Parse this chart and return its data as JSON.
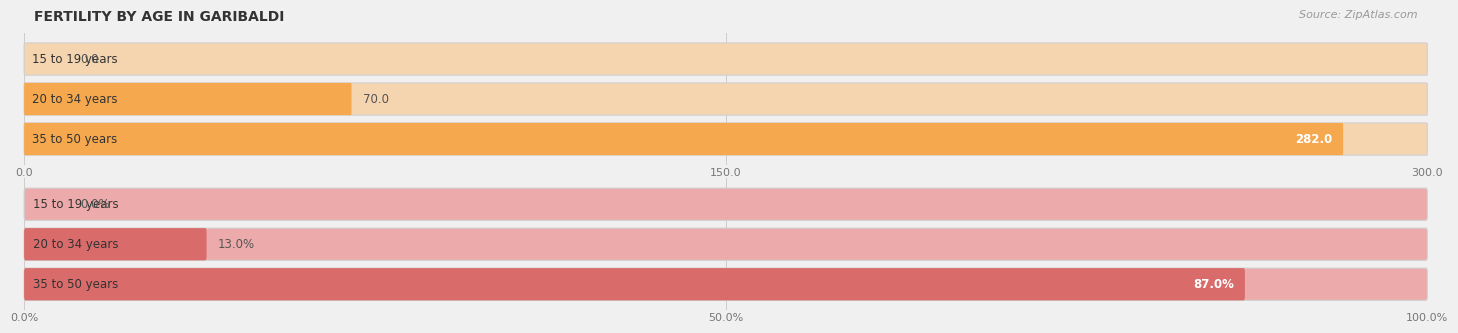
{
  "title": "FERTILITY BY AGE IN GARIBALDI",
  "source": "Source: ZipAtlas.com",
  "top_chart": {
    "categories": [
      "15 to 19 years",
      "20 to 34 years",
      "35 to 50 years"
    ],
    "values": [
      0.0,
      70.0,
      282.0
    ],
    "max_val": 300.0,
    "xlim": [
      0,
      300
    ],
    "xticks": [
      0.0,
      150.0,
      300.0
    ],
    "xtick_labels": [
      "0.0",
      "150.0",
      "300.0"
    ],
    "bar_color": "#F5A84E",
    "bar_bg_color": "#F5D5B0"
  },
  "bottom_chart": {
    "categories": [
      "15 to 19 years",
      "20 to 34 years",
      "35 to 50 years"
    ],
    "values": [
      0.0,
      13.0,
      87.0
    ],
    "max_val": 100.0,
    "xlim": [
      0,
      100
    ],
    "xticks": [
      0.0,
      50.0,
      100.0
    ],
    "xtick_labels": [
      "0.0%",
      "50.0%",
      "100.0%"
    ],
    "bar_color": "#D96B6B",
    "bar_bg_color": "#EDAAAA"
  },
  "bg_color": "#f0f0f0",
  "label_fontsize": 8.5,
  "value_fontsize": 8.5,
  "title_fontsize": 10,
  "source_fontsize": 8
}
